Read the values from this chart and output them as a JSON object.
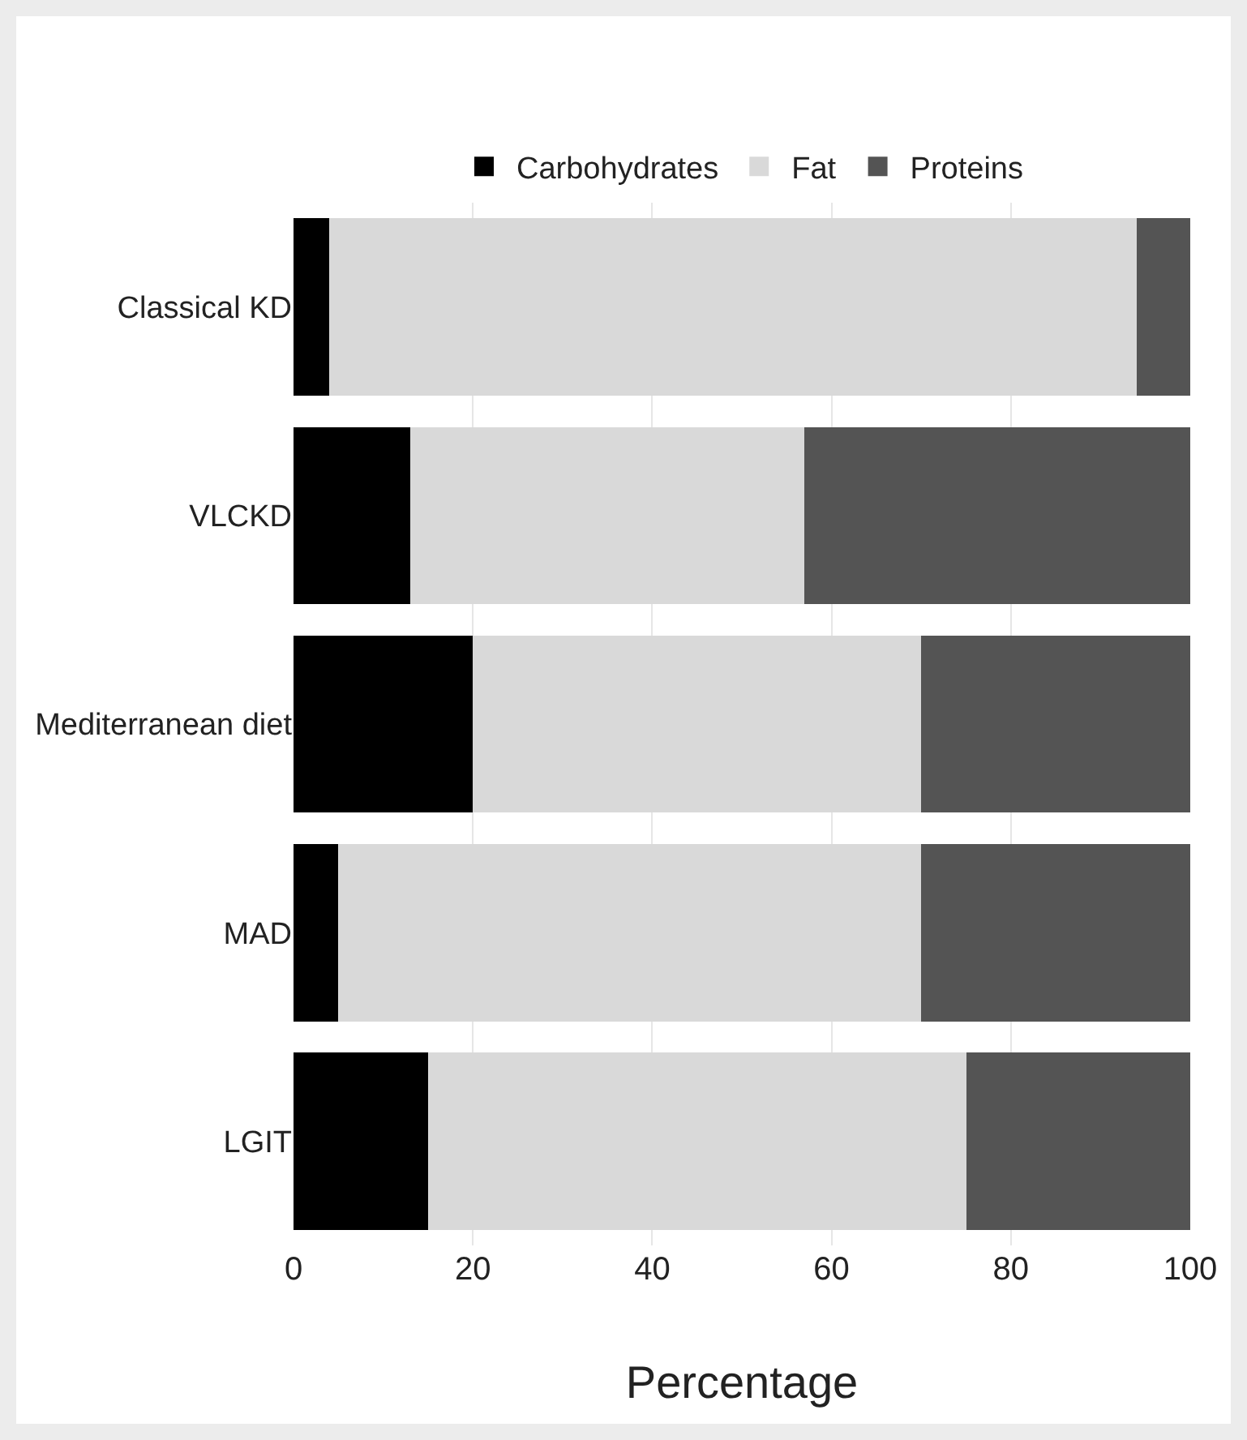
{
  "chart_data": {
    "type": "bar",
    "orientation": "horizontal",
    "stacked": true,
    "categories": [
      "Classical KD",
      "VLCKD",
      "Mediterranean diet",
      "MAD",
      "LGIT"
    ],
    "series": [
      {
        "name": "Carbohydrates",
        "color": "#000000",
        "values": [
          4,
          13,
          20,
          5,
          15
        ]
      },
      {
        "name": "Fat",
        "color": "#d9d9d9",
        "values": [
          90,
          44,
          50,
          65,
          60
        ]
      },
      {
        "name": "Proteins",
        "color": "#545454",
        "values": [
          6,
          43,
          30,
          30,
          25
        ]
      }
    ],
    "xlabel": "Percentage",
    "xlim": [
      0,
      100
    ],
    "xticks": [
      0,
      20,
      40,
      60,
      80,
      100
    ],
    "grid": "x",
    "legend": "top"
  }
}
